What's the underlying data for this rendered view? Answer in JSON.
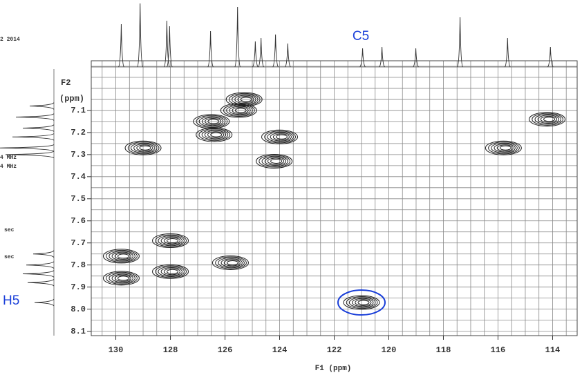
{
  "chart_data": {
    "type": "contour",
    "xlabel": "F1 (ppm)",
    "ylabel": "F2",
    "ylabel_unit": "(ppm)",
    "xlim": [
      130.9,
      113.1
    ],
    "ylim": [
      6.875,
      8.12
    ],
    "xticks": [
      130,
      128,
      126,
      124,
      122,
      120,
      118,
      116,
      114
    ],
    "yticks": [
      7.1,
      7.2,
      7.3,
      7.4,
      7.5,
      7.6,
      7.7,
      7.8,
      7.9,
      {
        "value": 8,
        "label": "8.0"
      },
      8.1
    ],
    "xgrid": [
      130.5,
      130,
      129.5,
      129,
      128.5,
      128,
      127.5,
      127,
      126.5,
      126,
      125.5,
      125,
      124.5,
      124,
      123.5,
      123,
      122.5,
      122,
      121.5,
      121,
      120.5,
      120,
      119.5,
      119,
      118.5,
      118,
      117.5,
      117,
      116.5,
      116,
      115.5,
      115,
      114.5,
      114,
      113.5
    ],
    "ygrid": [
      6.9,
      6.95,
      7.0,
      7.05,
      7.1,
      7.15,
      7.2,
      7.25,
      7.3,
      7.35,
      7.4,
      7.45,
      7.5,
      7.55,
      7.6,
      7.65,
      7.7,
      7.75,
      7.8,
      7.85,
      7.9,
      7.95,
      8.0,
      8.05,
      8.1
    ],
    "grid": true,
    "color": "#222222",
    "peaks": {
      "x": [
        129.0,
        126.5,
        126.4,
        125.3,
        125.5,
        124.0,
        124.2,
        115.8,
        114.2,
        129.8,
        129.8,
        128.0,
        128.0,
        125.8,
        121.0
      ],
      "y": [
        7.27,
        7.15,
        7.21,
        7.05,
        7.1,
        7.22,
        7.33,
        7.27,
        7.14,
        7.76,
        7.86,
        7.69,
        7.83,
        7.79,
        7.97
      ]
    },
    "top_projection": {
      "x": [
        129.8,
        129.11,
        128.13,
        128.03,
        126.53,
        125.54,
        124.89,
        124.68,
        124.15,
        123.7,
        120.96,
        120.25,
        119.01,
        117.39,
        115.65,
        114.08
      ],
      "intensity": [
        62,
        92,
        67,
        59,
        52,
        87,
        37,
        42,
        47,
        34,
        27,
        29,
        27,
        72,
        42,
        29
      ]
    },
    "left_projection": {
      "y": [
        7.08,
        7.13,
        7.18,
        7.22,
        7.27,
        7.3,
        7.75,
        7.8,
        7.84,
        7.88,
        7.97
      ],
      "intensity": [
        35,
        55,
        45,
        60,
        80,
        70,
        30,
        40,
        45,
        38,
        28
      ]
    },
    "annotations": [
      "C5",
      "H5"
    ],
    "annotation_color": "#1a3fd9",
    "highlight": {
      "x": 121.0,
      "y": 7.97
    },
    "margin_notes": [
      "2 2014",
      "4 MHz",
      "4 MHz",
      "sec",
      "sec"
    ]
  }
}
